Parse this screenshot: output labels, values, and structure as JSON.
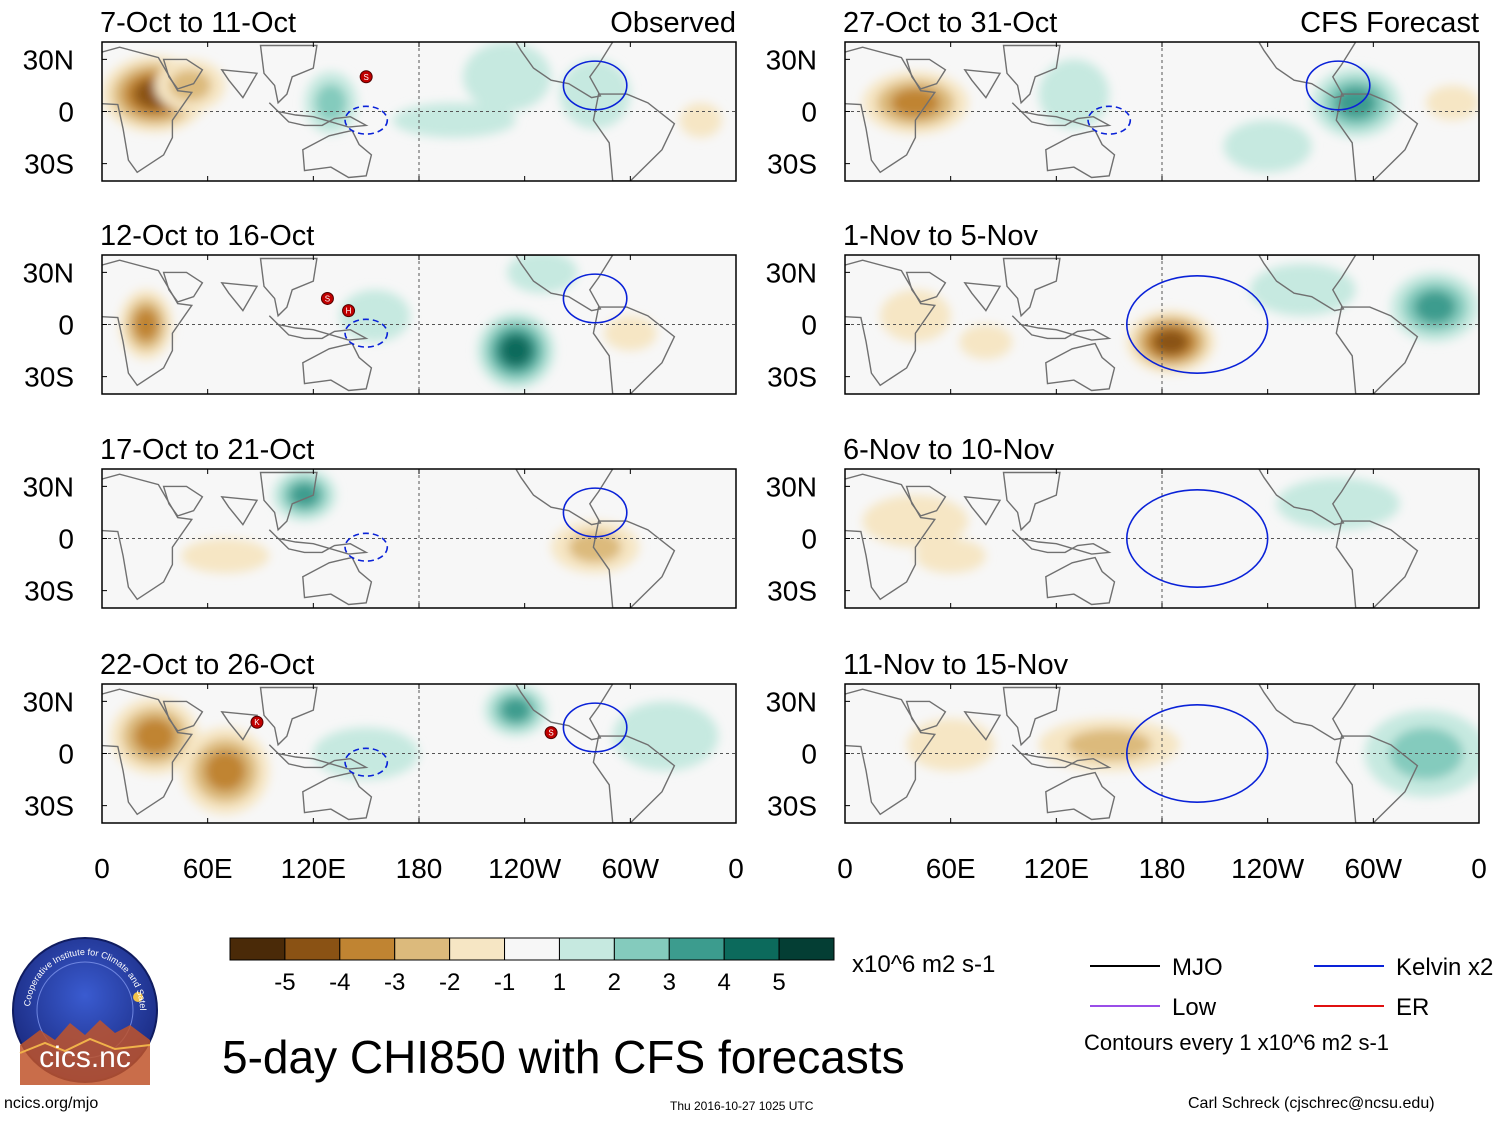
{
  "title": "5-day CHI850 with CFS forecasts",
  "footer": {
    "left": "ncics.org/mjo",
    "center": "Thu 2016-10-27 1025 UTC",
    "right": "Carl Schreck (cjschrec@ncsu.edu)"
  },
  "logo": {
    "arc_text": "Cooperative Institute for Climate and Satellites",
    "name": "cics.nc"
  },
  "contour_legend": {
    "items": [
      {
        "label": "MJO",
        "color": "#000000"
      },
      {
        "label": "Kelvin x2",
        "color": "#0a22d8"
      },
      {
        "label": "Low",
        "color": "#9a4ee8"
      },
      {
        "label": "ER",
        "color": "#e01010"
      }
    ],
    "note": "Contours every 1 x10^6 m2 s-1"
  },
  "chart_data": {
    "type": "heatmap",
    "variable": "CHI850",
    "colorbar": {
      "units": "x10^6 m2 s-1",
      "ticks": [
        "-5",
        "-4",
        "-3",
        "-2",
        "-1",
        "1",
        "2",
        "3",
        "4",
        "5"
      ],
      "colors": [
        "#4a2a08",
        "#8a5214",
        "#c08432",
        "#dcba7c",
        "#f6e6c4",
        "#f7f7f7",
        "#c6e9e0",
        "#84cbbd",
        "#3c9c8e",
        "#0c6a5c",
        "#043e34"
      ]
    },
    "y_axis": {
      "ticks": [
        "30N",
        "0",
        "30S"
      ]
    },
    "x_axis": {
      "ticks": [
        "0",
        "60E",
        "120E",
        "180",
        "120W",
        "60W",
        "0"
      ]
    },
    "columns": {
      "left_label": "Observed",
      "right_label": "CFS Forecast"
    },
    "panels": [
      {
        "title": "7-Oct to 11-Oct",
        "type": "Observed",
        "storms": [
          {
            "letter": "S",
            "lon": 150,
            "lat": 20
          }
        ],
        "blobs": [
          [
            30,
            10,
            30,
            22,
            -4.5
          ],
          [
            50,
            15,
            20,
            15,
            -2.5
          ],
          [
            130,
            5,
            15,
            18,
            2.5
          ],
          [
            230,
            20,
            25,
            20,
            1.5
          ],
          [
            200,
            -5,
            35,
            10,
            1.2
          ],
          [
            280,
            10,
            20,
            20,
            1.5
          ],
          [
            340,
            -5,
            12,
            10,
            -1.5
          ]
        ]
      },
      {
        "title": "12-Oct to 16-Oct",
        "type": "Observed",
        "storms": [
          {
            "letter": "S",
            "lon": 128,
            "lat": 15
          },
          {
            "letter": "H",
            "lon": 140,
            "lat": 8
          }
        ],
        "blobs": [
          [
            25,
            0,
            15,
            20,
            -3.5
          ],
          [
            235,
            -15,
            22,
            22,
            4
          ],
          [
            250,
            30,
            20,
            12,
            1.5
          ],
          [
            155,
            5,
            20,
            15,
            1
          ],
          [
            300,
            -5,
            15,
            10,
            -1.5
          ]
        ]
      },
      {
        "title": "17-Oct to 21-Oct",
        "type": "Observed",
        "storms": [],
        "blobs": [
          [
            115,
            25,
            18,
            15,
            3
          ],
          [
            280,
            -5,
            25,
            15,
            -2
          ],
          [
            70,
            -10,
            25,
            10,
            -1
          ],
          [
            200,
            5,
            30,
            6,
            -0.8
          ]
        ]
      },
      {
        "title": "22-Oct to 26-Oct",
        "type": "Observed",
        "storms": [
          {
            "letter": "K",
            "lon": 88,
            "lat": 18
          },
          {
            "letter": "S",
            "lon": 255,
            "lat": 12
          }
        ],
        "blobs": [
          [
            30,
            10,
            25,
            22,
            -3
          ],
          [
            70,
            -10,
            25,
            25,
            -3
          ],
          [
            235,
            25,
            18,
            15,
            3
          ],
          [
            150,
            0,
            30,
            15,
            1.5
          ],
          [
            320,
            10,
            30,
            20,
            1.2
          ]
        ]
      },
      {
        "title": "27-Oct to 31-Oct",
        "type": "Forecast",
        "storms": [],
        "blobs": [
          [
            40,
            5,
            30,
            18,
            -3
          ],
          [
            290,
            5,
            25,
            20,
            3
          ],
          [
            130,
            10,
            20,
            20,
            1.5
          ],
          [
            240,
            -20,
            25,
            15,
            1
          ],
          [
            345,
            5,
            15,
            10,
            -1
          ]
        ]
      },
      {
        "title": "1-Nov to 5-Nov",
        "type": "Forecast",
        "storms": [],
        "blobs": [
          [
            185,
            -10,
            25,
            18,
            -4
          ],
          [
            335,
            10,
            25,
            20,
            3.5
          ],
          [
            260,
            20,
            30,
            15,
            1.5
          ],
          [
            80,
            -10,
            15,
            10,
            -1.2
          ],
          [
            40,
            5,
            20,
            15,
            -1
          ]
        ]
      },
      {
        "title": "6-Nov to 10-Nov",
        "type": "Forecast",
        "storms": [],
        "blobs": [
          [
            40,
            10,
            30,
            15,
            -1.8
          ],
          [
            280,
            20,
            35,
            15,
            1.5
          ],
          [
            60,
            -10,
            20,
            10,
            -1.2
          ]
        ]
      },
      {
        "title": "11-Nov to 15-Nov",
        "type": "Forecast",
        "storms": [],
        "blobs": [
          [
            150,
            5,
            40,
            15,
            -2
          ],
          [
            330,
            0,
            35,
            25,
            2.5
          ],
          [
            60,
            5,
            25,
            15,
            -1
          ]
        ]
      }
    ]
  }
}
